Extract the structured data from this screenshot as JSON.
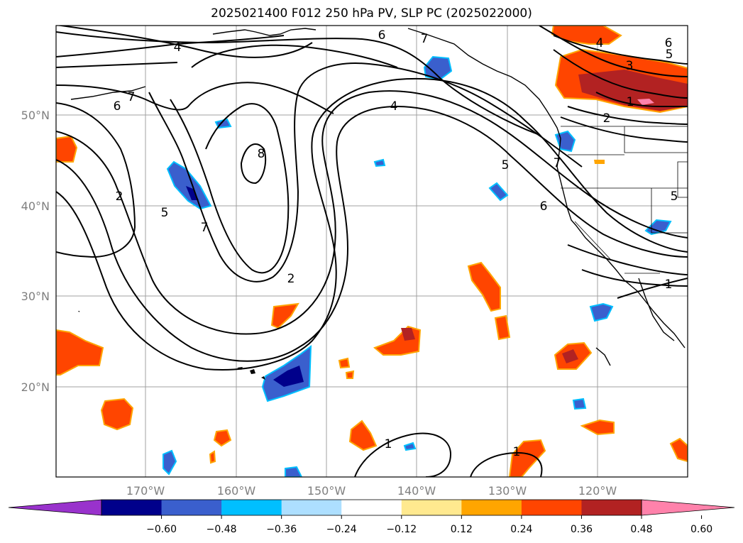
{
  "title": "2025021400 F012 250 hPa PV, SLP PC (2025022000)",
  "map": {
    "lon_ticks": [
      "170°W",
      "160°W",
      "150°W",
      "140°W",
      "130°W",
      "120°W"
    ],
    "lat_ticks": [
      "50°N",
      "40°N",
      "30°N",
      "20°N"
    ],
    "contour_labels": [
      "4",
      "6",
      "7",
      "4",
      "3",
      "6",
      "5",
      "1",
      "2",
      "6",
      "7",
      "2",
      "8",
      "5",
      "7",
      "4",
      "5",
      "7",
      "6",
      "5",
      "2",
      "1",
      "1",
      "1"
    ]
  },
  "colorbar": {
    "ticks": [
      "−0.60",
      "−0.48",
      "−0.36",
      "−0.24",
      "−0.12",
      "0.12",
      "0.24",
      "0.36",
      "0.48",
      "0.60"
    ],
    "colors": [
      "#9932CC",
      "#00008B",
      "#3A5FCD",
      "#00BFFF",
      "#ADDFFF",
      "#FFFFFF",
      "#FFE98F",
      "#FFA500",
      "#FF4500",
      "#B22222",
      "#FF82AB"
    ]
  }
}
